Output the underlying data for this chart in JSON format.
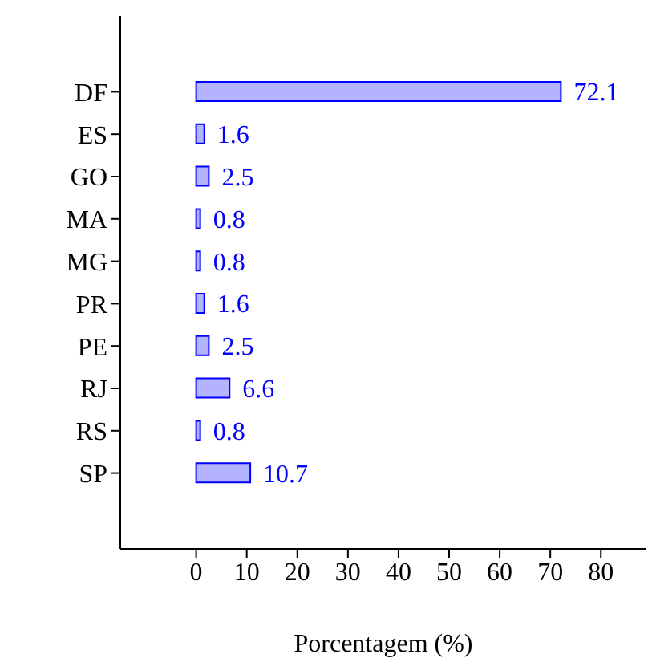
{
  "chart_data": {
    "type": "bar",
    "orientation": "horizontal",
    "xlabel": "Porcentagem (%)",
    "categories": [
      "DF",
      "ES",
      "GO",
      "MA",
      "MG",
      "PR",
      "PE",
      "RJ",
      "RS",
      "SP"
    ],
    "series": [
      {
        "color": "#b3b3ff",
        "values": [
          72.1,
          1.6,
          2.5,
          0.8,
          0.8,
          1.6,
          2.5,
          6.6,
          0.8,
          10.7
        ]
      }
    ],
    "xlim": [
      -15,
      89
    ],
    "xticks": [
      0,
      10,
      20,
      30,
      40,
      50,
      60,
      70,
      80
    ],
    "grid": false,
    "data_labels": true
  }
}
